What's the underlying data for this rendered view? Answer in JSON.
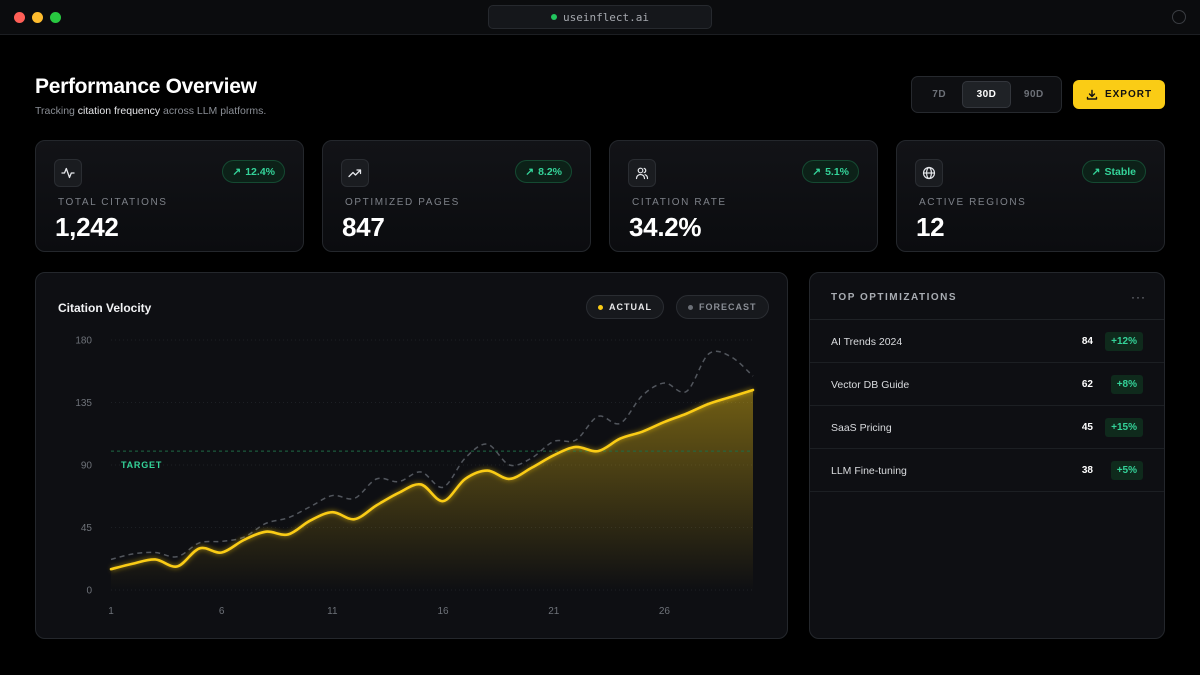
{
  "browser": {
    "url": "useinflect.ai"
  },
  "header": {
    "title": "Performance Overview",
    "subtitle_prefix": "Tracking ",
    "subtitle_highlight": "citation frequency",
    "subtitle_suffix": " across LLM platforms."
  },
  "range": {
    "options": [
      "7D",
      "30D",
      "90D"
    ],
    "selected": "30D"
  },
  "export_label": "EXPORT",
  "stats": [
    {
      "icon": "activity-icon",
      "badge": "12.4%",
      "label": "TOTAL CITATIONS",
      "value": "1,242"
    },
    {
      "icon": "trending-up-icon",
      "badge": "8.2%",
      "label": "OPTIMIZED PAGES",
      "value": "847"
    },
    {
      "icon": "users-icon",
      "badge": "5.1%",
      "label": "CITATION RATE",
      "value": "34.2%"
    },
    {
      "icon": "globe-icon",
      "badge": "Stable",
      "label": "ACTIVE REGIONS",
      "value": "12"
    }
  ],
  "colors": {
    "accent": "#facc15",
    "positive": "#34d399",
    "background": "#000000",
    "panel": "#0e0f13"
  },
  "chart_data": {
    "type": "area",
    "title": "Citation Velocity",
    "legend": [
      "ACTUAL",
      "FORECAST"
    ],
    "legend_placement": "top-right",
    "x": [
      1,
      2,
      3,
      4,
      5,
      6,
      7,
      8,
      9,
      10,
      11,
      12,
      13,
      14,
      15,
      16,
      17,
      18,
      19,
      20,
      21,
      22,
      23,
      24,
      25,
      26,
      27,
      28,
      29,
      30
    ],
    "x_ticks": [
      1,
      6,
      11,
      16,
      21,
      26
    ],
    "y_ticks": [
      0,
      45,
      90,
      135,
      180
    ],
    "ylim": [
      0,
      180
    ],
    "xlim": [
      1,
      30
    ],
    "grid": true,
    "target": {
      "label": "TARGET",
      "value": 100
    },
    "series": [
      {
        "name": "ACTUAL",
        "values": [
          15,
          19,
          22,
          17,
          30,
          27,
          36,
          42,
          40,
          50,
          56,
          51,
          61,
          70,
          76,
          64,
          80,
          86,
          80,
          88,
          97,
          103,
          100,
          109,
          114,
          121,
          127,
          134,
          139,
          144
        ]
      },
      {
        "name": "FORECAST",
        "values": [
          22,
          26,
          27,
          24,
          34,
          35,
          38,
          48,
          52,
          60,
          68,
          66,
          80,
          78,
          85,
          74,
          95,
          105,
          90,
          95,
          107,
          108,
          125,
          120,
          140,
          149,
          143,
          170,
          168,
          154
        ]
      }
    ]
  },
  "top_optimizations": {
    "title": "TOP OPTIMIZATIONS",
    "more": "···",
    "rows": [
      {
        "name": "AI Trends 2024",
        "value": "84",
        "delta": "+12%"
      },
      {
        "name": "Vector DB Guide",
        "value": "62",
        "delta": "+8%"
      },
      {
        "name": "SaaS Pricing",
        "value": "45",
        "delta": "+15%"
      },
      {
        "name": "LLM Fine-tuning",
        "value": "38",
        "delta": "+5%"
      }
    ]
  }
}
